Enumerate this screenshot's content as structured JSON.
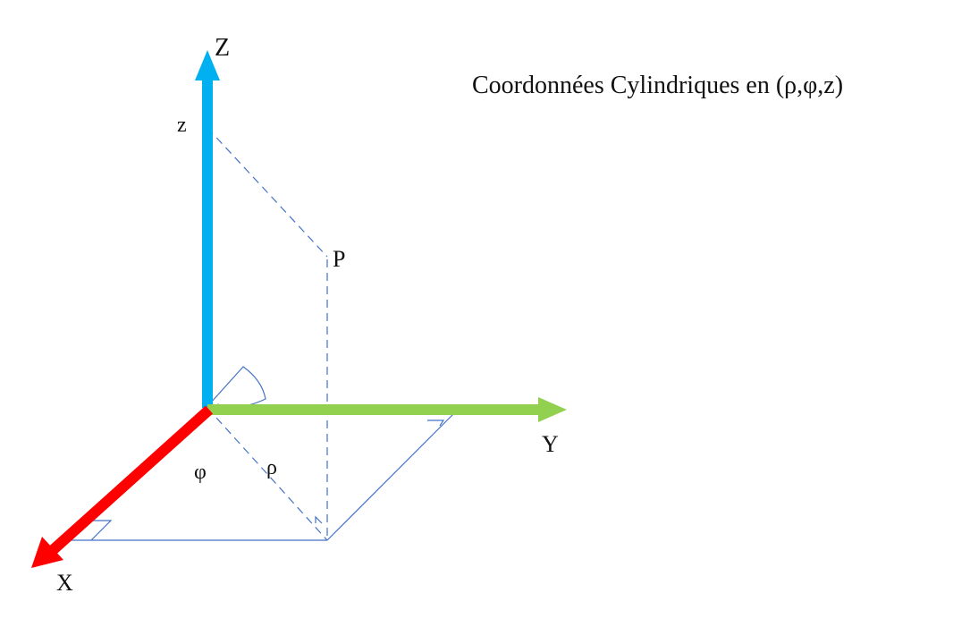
{
  "title": "Coordonnées Cylindriques en (ρ,φ,z)",
  "labels": {
    "z_axis": "Z",
    "y_axis": "Y",
    "x_axis": "X",
    "z_coord": "z",
    "point": "P",
    "rho": "ρ",
    "phi": "φ"
  },
  "colors": {
    "z_axis": "#00b0f0",
    "y_axis": "#92d050",
    "x_axis": "#ff0000",
    "construction": "#4472c4"
  }
}
